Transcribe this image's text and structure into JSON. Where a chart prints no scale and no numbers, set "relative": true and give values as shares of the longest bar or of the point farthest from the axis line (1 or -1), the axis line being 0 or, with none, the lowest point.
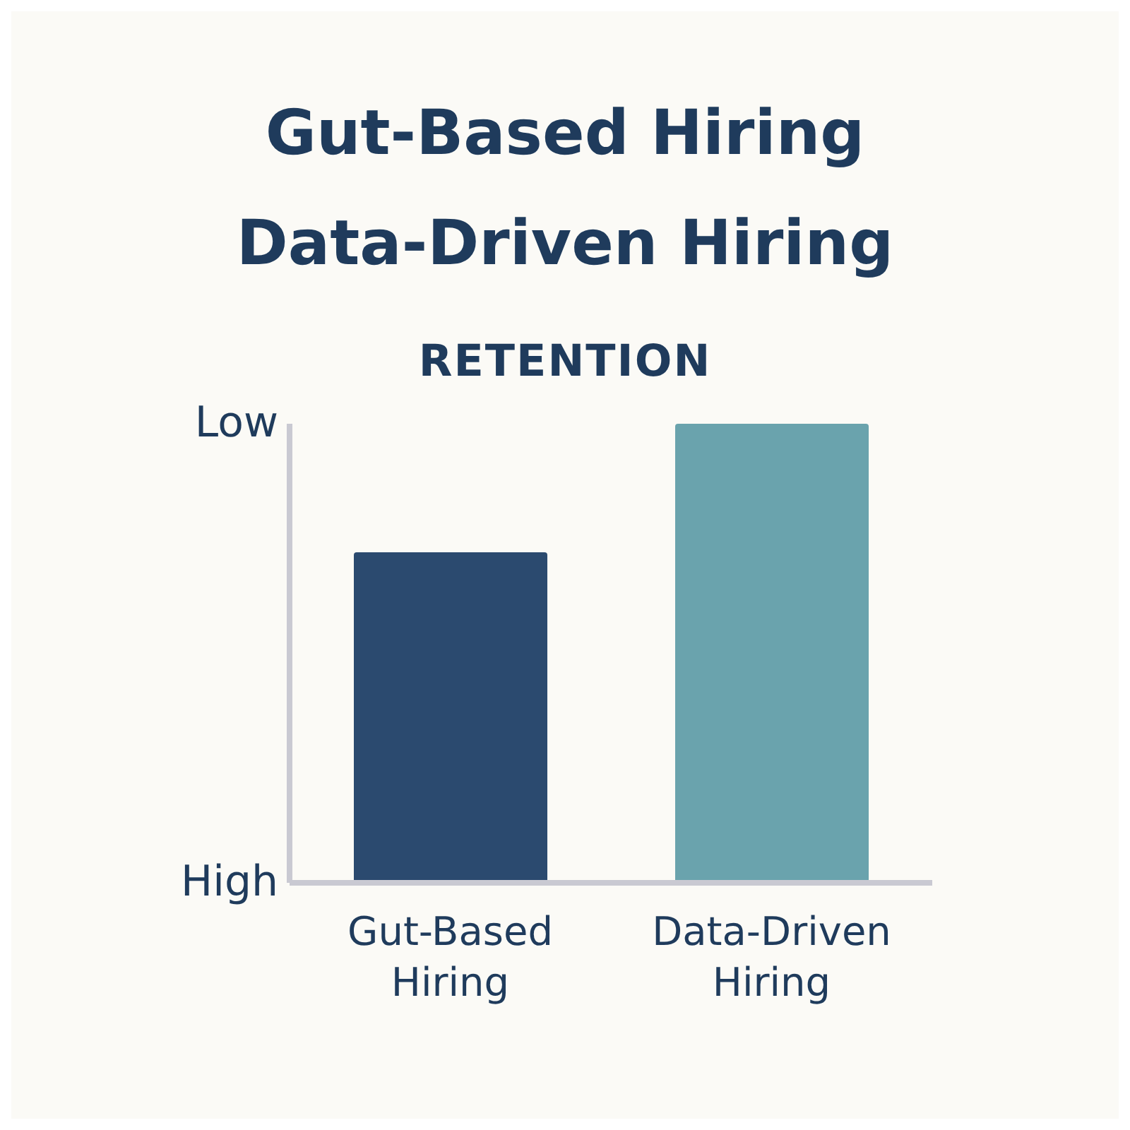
{
  "chart_data": {
    "type": "bar",
    "title": "Gut-Based Hiring\nData-Driven Hiring",
    "subtitle": "RETENTION",
    "categories": [
      "Gut-Based Hiring",
      "Data-Driven Hiring"
    ],
    "values": [
      0.72,
      1
    ],
    "colors": [
      "#2b4a6f",
      "#6aa3ad"
    ],
    "relative": true,
    "annotations": [
      "Low",
      "High"
    ],
    "grid": false,
    "legend": false
  }
}
